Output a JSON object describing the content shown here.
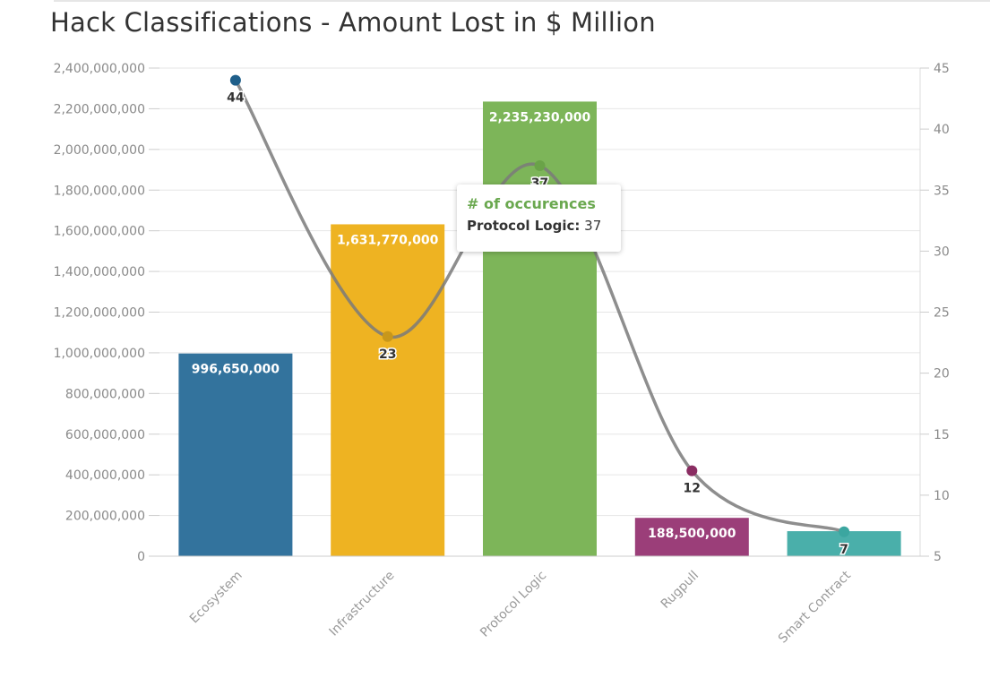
{
  "page": {
    "title": "Hack Classifications - Amount Lost in $ Million"
  },
  "chart_data": {
    "type": "bar",
    "title": "Hack Classifications - Amount Lost in $ Million",
    "categories": [
      "Ecosystem",
      "Infrastructure",
      "Protocol Logic",
      "Rugpull",
      "Smart Contract"
    ],
    "series": [
      {
        "type": "bar",
        "axis": "left",
        "values": [
          996650000,
          1631770000,
          2235230000,
          188500000,
          123000000
        ],
        "data_labels": [
          "996,650,000",
          "1,631,770,000",
          "2,235,230,000",
          "188,500,000",
          ""
        ],
        "colors": [
          "#33739d",
          "#eeb322",
          "#7db559",
          "#9b3e79",
          "#4aafaa"
        ]
      },
      {
        "type": "line",
        "name": "# of occurences",
        "axis": "right",
        "values": [
          44,
          23,
          37,
          12,
          7
        ],
        "data_labels": [
          "44",
          "23",
          "37",
          "12",
          "7"
        ],
        "line_color": "#7a7a7a",
        "marker_colors": [
          "#1f5f8a",
          "#c8971a",
          "#6aa348",
          "#8a2d62",
          "#3ba6a0"
        ]
      }
    ],
    "ylim_left": [
      0,
      2400000000
    ],
    "ylim_right": [
      5,
      45
    ],
    "left_ticks": [
      "0",
      "200,000,000",
      "400,000,000",
      "600,000,000",
      "800,000,000",
      "1,000,000,000",
      "1,200,000,000",
      "1,400,000,000",
      "1,600,000,000",
      "1,800,000,000",
      "2,000,000,000",
      "2,200,000,000",
      "2,400,000,000"
    ],
    "left_tick_values": [
      0,
      200000000,
      400000000,
      600000000,
      800000000,
      1000000000,
      1200000000,
      1400000000,
      1600000000,
      1800000000,
      2000000000,
      2200000000,
      2400000000
    ],
    "right_ticks": [
      "5",
      "10",
      "15",
      "20",
      "25",
      "30",
      "35",
      "40",
      "45"
    ],
    "right_tick_values": [
      5,
      10,
      15,
      20,
      25,
      30,
      35,
      40,
      45
    ],
    "grid": true,
    "tooltip": {
      "title": "# of occurences",
      "category": "Protocol Logic:",
      "value": "37",
      "title_color": "#6aa84f"
    }
  }
}
